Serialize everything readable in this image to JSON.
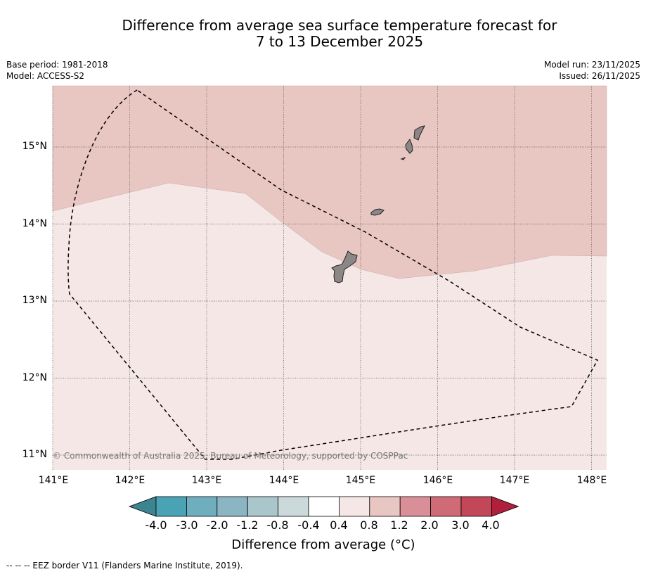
{
  "title": {
    "line1": "Difference from average sea surface temperature forecast for",
    "line2": "7 to 13 December 2025"
  },
  "meta": {
    "base_period": "Base period: 1981-2018",
    "model": "Model: ACCESS-S2",
    "model_run": "Model run: 23/11/2025",
    "issued": "Issued: 26/11/2025"
  },
  "map": {
    "lat_labels": [
      "15°N",
      "14°N",
      "13°N",
      "12°N",
      "11°N"
    ],
    "lon_labels": [
      "141°E",
      "142°E",
      "143°E",
      "144°E",
      "145°E",
      "146°E",
      "147°E",
      "148°E"
    ],
    "copyright": "© Commonwealth of Australia 2025, Bureau of Meteorology, supported by COSPPac",
    "colors": {
      "warm_high": "#e8c6c2",
      "warm_low": "#f4e7e5",
      "land": "#8c8686"
    }
  },
  "colorbar": {
    "labels": [
      "-4.0",
      "-3.0",
      "-2.0",
      "-1.2",
      "-0.8",
      "-0.4",
      "0.4",
      "0.8",
      "1.2",
      "2.0",
      "3.0",
      "4.0"
    ],
    "colors": [
      "#3d8491",
      "#4aa3b4",
      "#6eaebd",
      "#8bb5c2",
      "#a9c6cb",
      "#ccd9da",
      "#ffffff",
      "#f4e7e5",
      "#e8c6c2",
      "#d98f98",
      "#cf6a77",
      "#c24859",
      "#b01f3b"
    ],
    "title": "Difference from average (",
    "title_unit": "°C)"
  },
  "footnote": "--  --  -- EEZ border V11 (Flanders Marine Institute, 2019)."
}
